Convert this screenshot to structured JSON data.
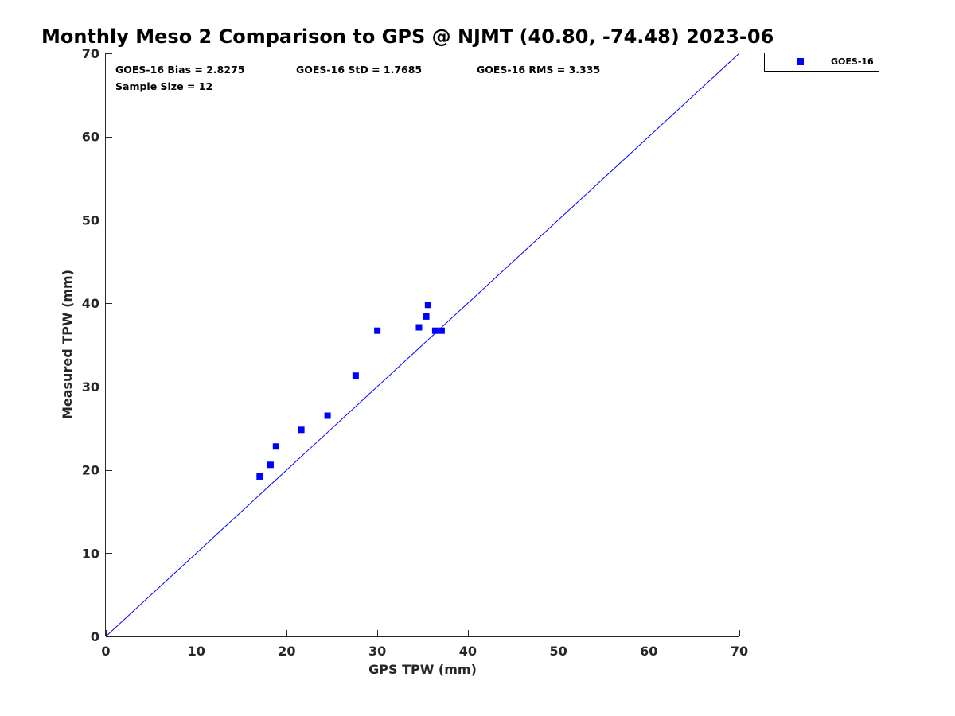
{
  "chart_data": {
    "type": "scatter",
    "title": "Monthly Meso 2 Comparison to GPS @ NJMT (40.80, -74.48) 2023-06",
    "xlabel": "GPS TPW (mm)",
    "ylabel": "Measured TPW (mm)",
    "xlim": [
      0,
      70
    ],
    "ylim": [
      0,
      70
    ],
    "xticks": [
      0,
      10,
      20,
      30,
      40,
      50,
      60,
      70
    ],
    "yticks": [
      0,
      10,
      20,
      30,
      40,
      50,
      60,
      70
    ],
    "xtick_labels": [
      "0",
      "10",
      "20",
      "30",
      "40",
      "50",
      "60",
      "70"
    ],
    "ytick_labels": [
      "0",
      "10",
      "20",
      "30",
      "40",
      "50",
      "60",
      "70"
    ],
    "grid": false,
    "legend_position": "outside-top-right",
    "reference_line": {
      "type": "one-to-one",
      "from": [
        0,
        0
      ],
      "to": [
        70,
        70
      ],
      "color": "#0000ff"
    },
    "series": [
      {
        "name": "GOES-16",
        "marker": "square",
        "color": "#0000ff",
        "points": [
          {
            "x": 17.0,
            "y": 19.2
          },
          {
            "x": 18.2,
            "y": 20.6
          },
          {
            "x": 18.8,
            "y": 22.8
          },
          {
            "x": 21.6,
            "y": 24.8
          },
          {
            "x": 24.5,
            "y": 26.5
          },
          {
            "x": 27.6,
            "y": 31.3
          },
          {
            "x": 30.0,
            "y": 36.7
          },
          {
            "x": 34.6,
            "y": 37.1
          },
          {
            "x": 35.4,
            "y": 38.4
          },
          {
            "x": 35.6,
            "y": 39.8
          },
          {
            "x": 36.4,
            "y": 36.7
          },
          {
            "x": 37.1,
            "y": 36.7
          }
        ]
      }
    ],
    "annotations": {
      "bias": "GOES-16 Bias = 2.8275",
      "std": "GOES-16 StD = 1.7685",
      "rms": "GOES-16 RMS = 3.335",
      "sample_size": "Sample Size = 12"
    }
  }
}
